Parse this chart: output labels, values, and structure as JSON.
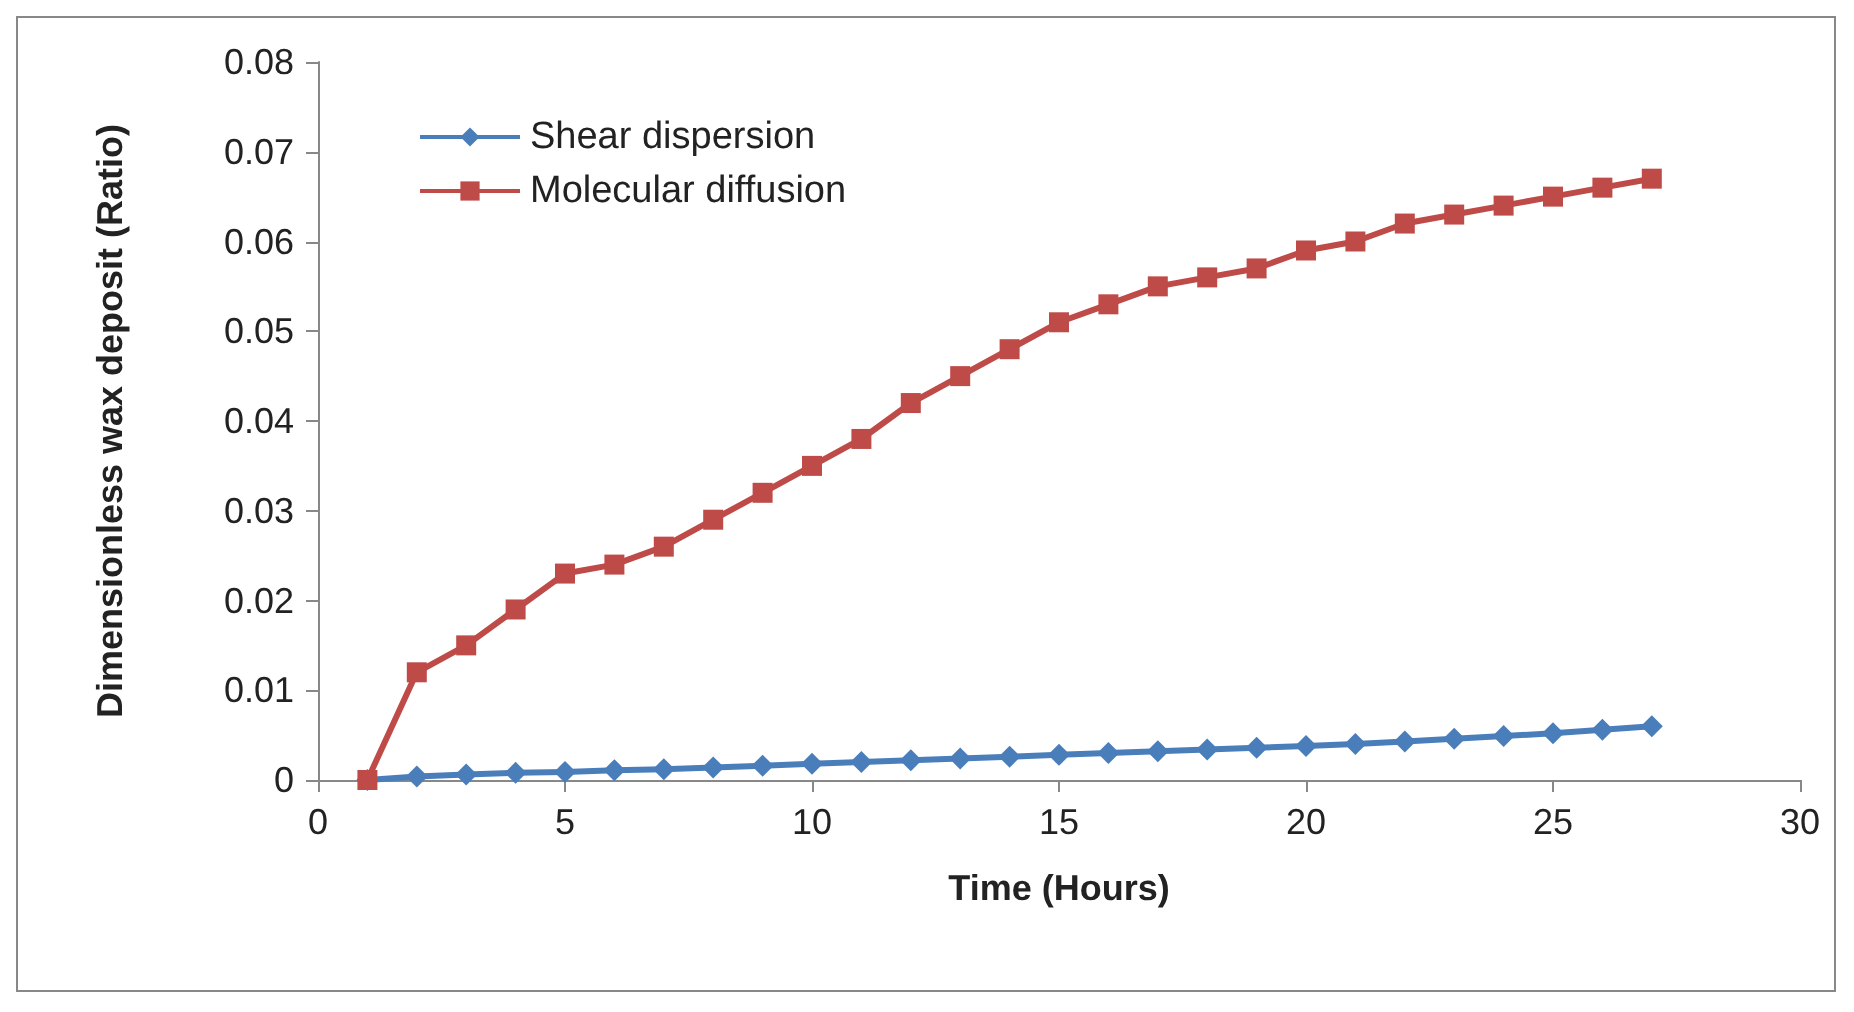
{
  "chart_data": {
    "type": "line",
    "xlabel": "Time (Hours)",
    "ylabel": "Dimensionless wax deposit (Ratio)",
    "x": [
      1,
      2,
      3,
      4,
      5,
      6,
      7,
      8,
      9,
      10,
      11,
      12,
      13,
      14,
      15,
      16,
      17,
      18,
      19,
      20,
      21,
      22,
      23,
      24,
      25,
      26,
      27
    ],
    "series": [
      {
        "name": "Shear dispersion",
        "color": "#4a7ebb",
        "marker": "diamond",
        "values": [
          0,
          0.0004,
          0.0006,
          0.0008,
          0.0009,
          0.0011,
          0.0012,
          0.0014,
          0.0016,
          0.0018,
          0.002,
          0.0022,
          0.0024,
          0.0026,
          0.0028,
          0.003,
          0.0032,
          0.0034,
          0.0036,
          0.0038,
          0.004,
          0.0043,
          0.0046,
          0.0049,
          0.0052,
          0.0056,
          0.006
        ]
      },
      {
        "name": "Molecular diffusion",
        "color": "#be4b48",
        "marker": "square",
        "values": [
          0,
          0.012,
          0.015,
          0.019,
          0.023,
          0.024,
          0.026,
          0.029,
          0.032,
          0.035,
          0.038,
          0.042,
          0.045,
          0.048,
          0.051,
          0.053,
          0.055,
          0.056,
          0.057,
          0.059,
          0.06,
          0.062,
          0.063,
          0.064,
          0.065,
          0.066,
          0.067
        ]
      }
    ],
    "xlim": [
      0,
      30
    ],
    "xticks": [
      0,
      5,
      10,
      15,
      20,
      25,
      30
    ],
    "ylim": [
      0,
      0.08
    ],
    "yticks": [
      0,
      0.01,
      0.02,
      0.03,
      0.04,
      0.05,
      0.06,
      0.07,
      0.08
    ],
    "grid": false,
    "legend": "top left"
  }
}
